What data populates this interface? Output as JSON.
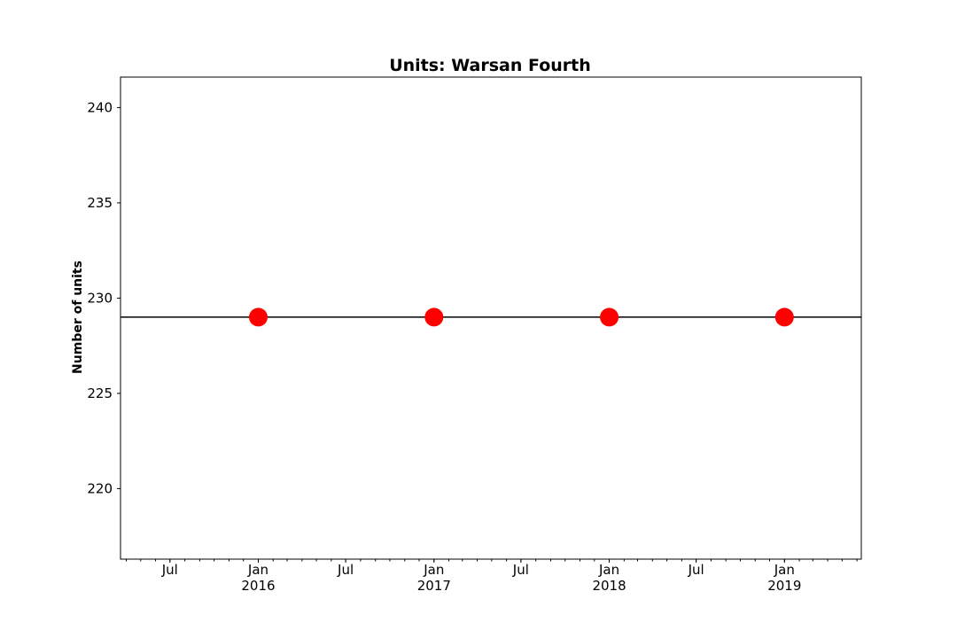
{
  "chart_data": {
    "type": "line",
    "title": "Units: Warsan Fourth",
    "xlabel": "",
    "ylabel": "Number of units",
    "x": [
      "2016-01-01",
      "2017-01-01",
      "2018-01-01",
      "2019-01-01"
    ],
    "series": [
      {
        "values": [
          229,
          229,
          229,
          229
        ],
        "marker_color": "#ff0000",
        "line_color": "#000000"
      }
    ],
    "xlim": [
      "2015-03-20",
      "2019-06-10"
    ],
    "ylim": [
      216.3,
      241.6
    ],
    "yticks": [
      220,
      225,
      230,
      235,
      240
    ],
    "xticks": [
      {
        "date": "2015-07-01",
        "label": "Jul",
        "sublabel": ""
      },
      {
        "date": "2016-01-01",
        "label": "Jan",
        "sublabel": "2016"
      },
      {
        "date": "2016-07-01",
        "label": "Jul",
        "sublabel": ""
      },
      {
        "date": "2017-01-01",
        "label": "Jan",
        "sublabel": "2017"
      },
      {
        "date": "2017-07-01",
        "label": "Jul",
        "sublabel": ""
      },
      {
        "date": "2018-01-01",
        "label": "Jan",
        "sublabel": "2018"
      },
      {
        "date": "2018-07-01",
        "label": "Jul",
        "sublabel": ""
      },
      {
        "date": "2019-01-01",
        "label": "Jan",
        "sublabel": "2019"
      }
    ],
    "grid": false,
    "legend": "none"
  }
}
